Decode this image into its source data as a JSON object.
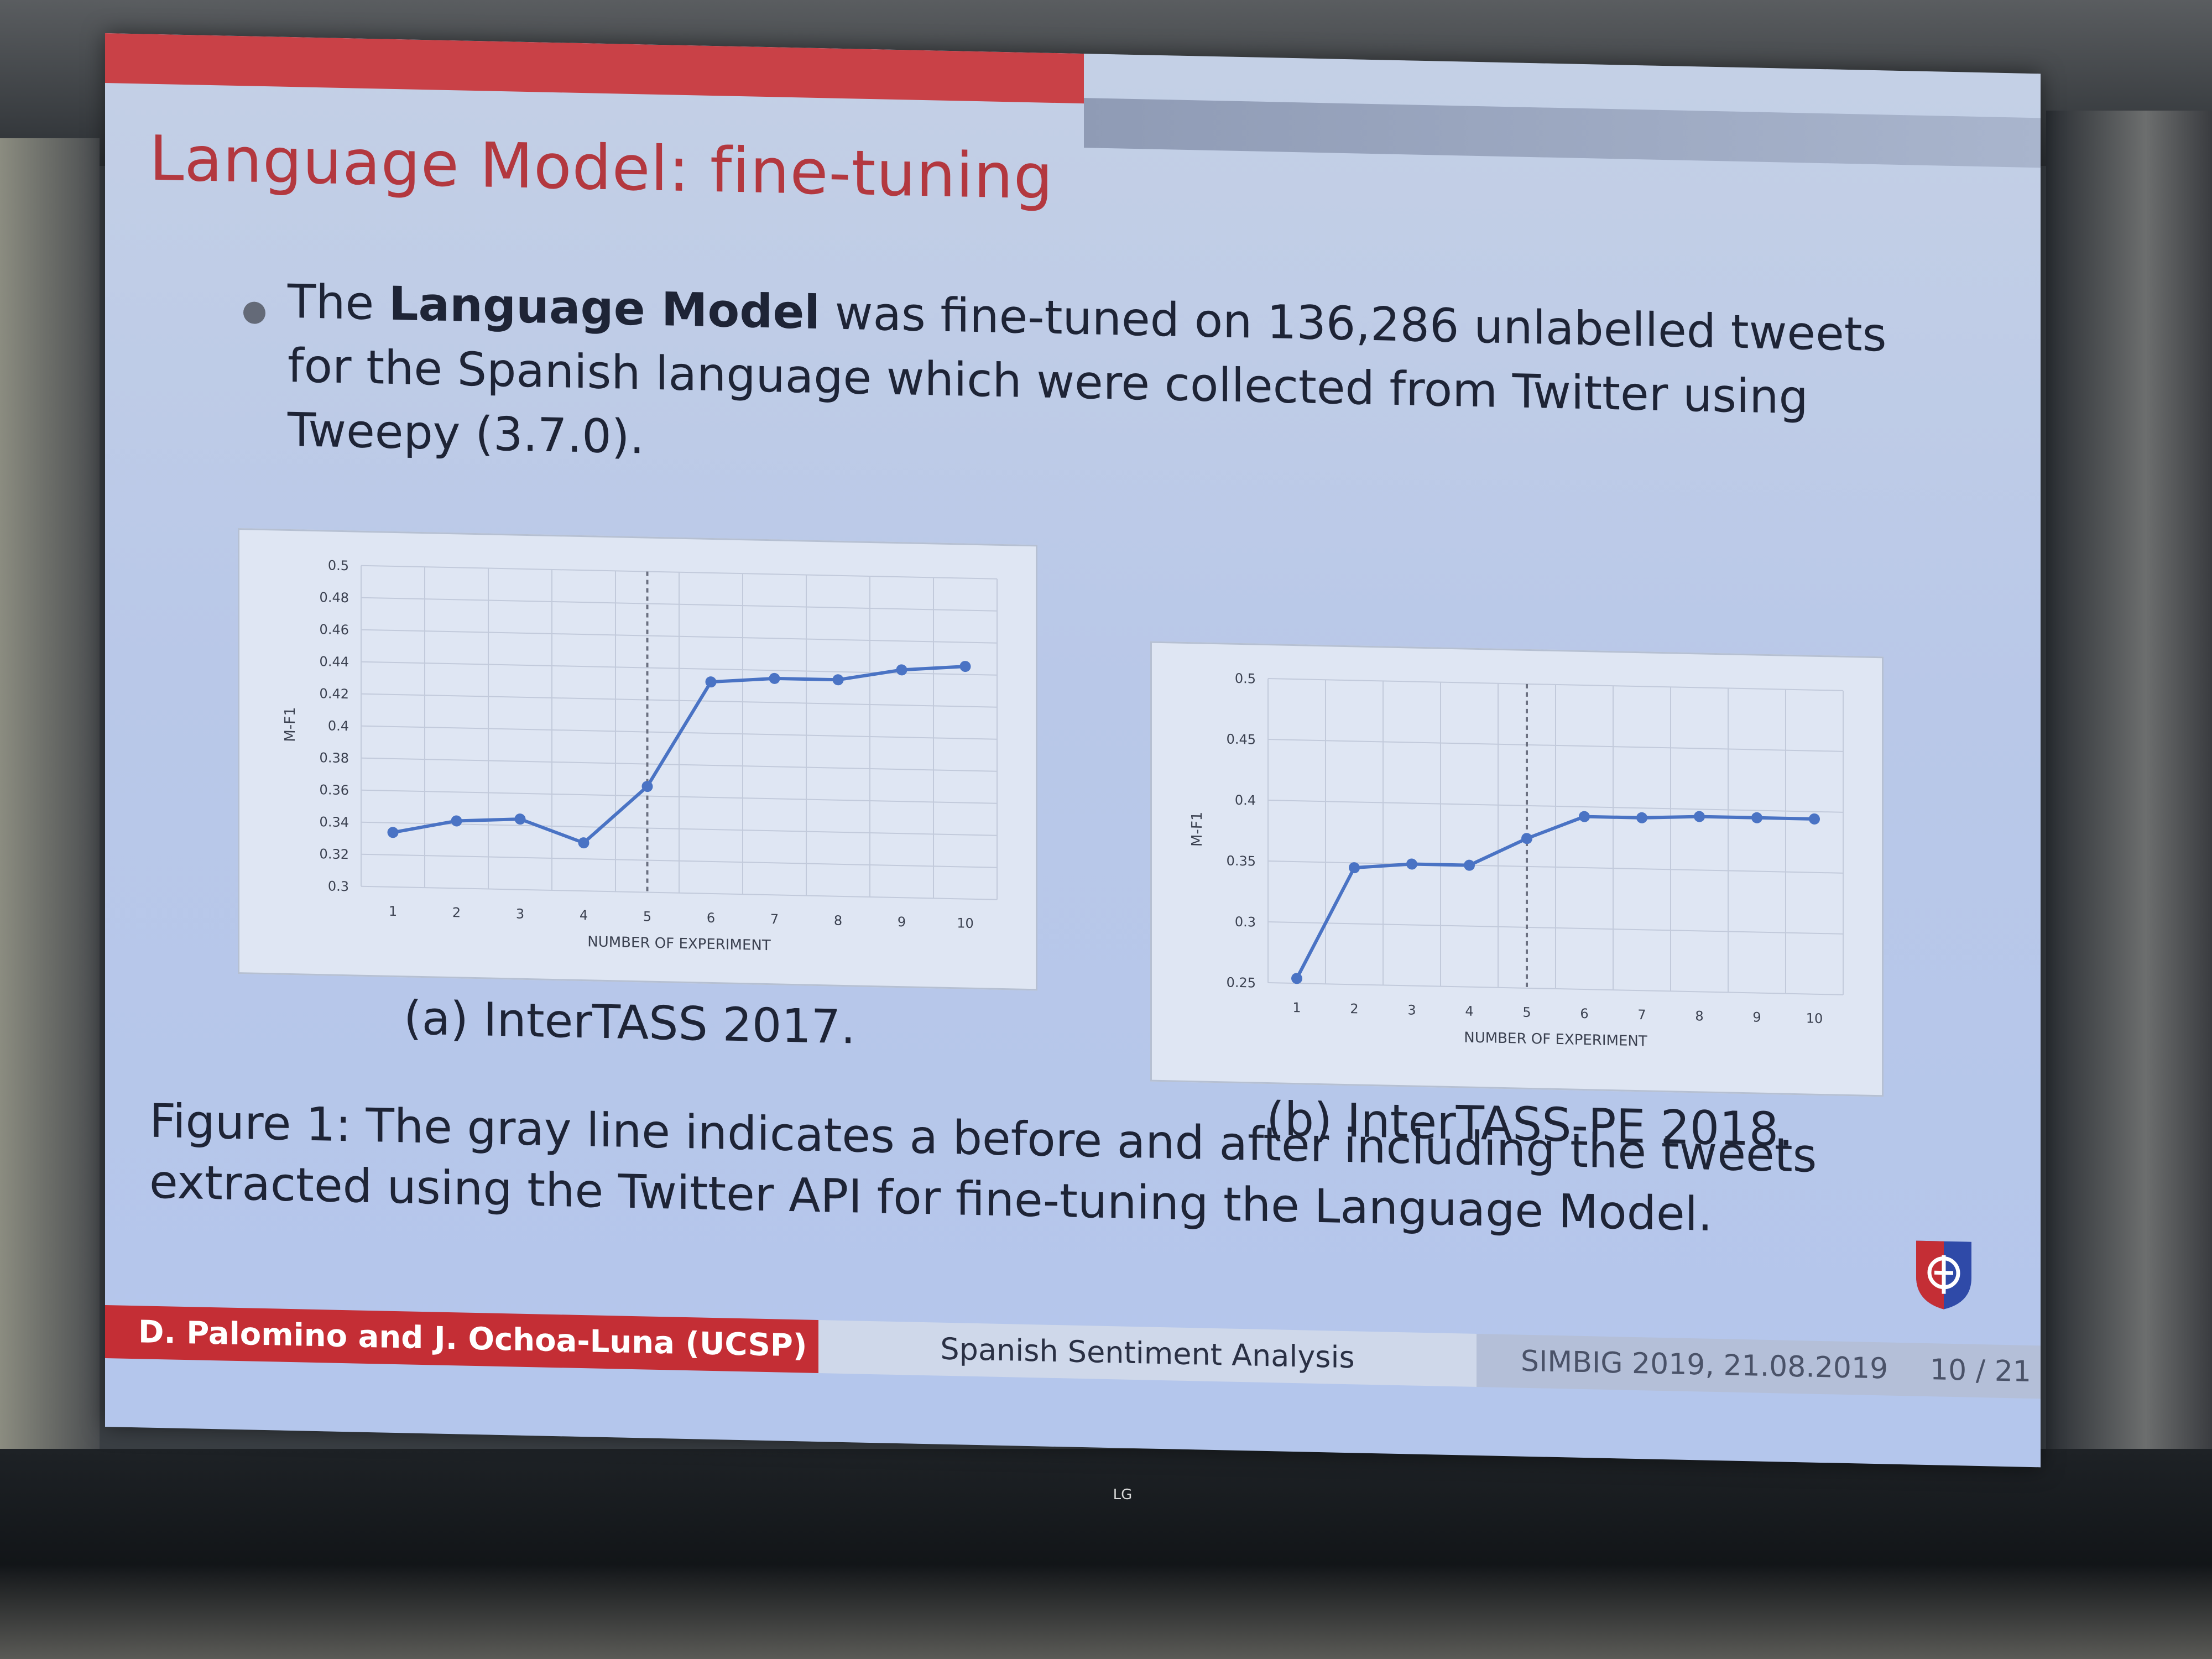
{
  "slide": {
    "title": "Language Model: fine-tuning",
    "bullet": {
      "prefix": "The ",
      "bold": "Language Model",
      "rest": " was fine-tuned on 136,286 unlabelled tweets for the Spanish language which were collected from Twitter using Tweepy (3.7.0)."
    },
    "caption_a": "(a) InterTASS 2017.",
    "caption_b": "(b) InterTASS-PE 2018.",
    "figure_caption": "Figure 1: The gray line indicates a before and after including the tweets extracted using the Twitter API for fine-tuning the Language Model.",
    "footer": {
      "authors": "D. Palomino and J. Ochoa-Luna (UCSP)",
      "talk_title": "Spanish Sentiment Analysis",
      "event_date": "SIMBIG 2019, 21.08.2019",
      "page": "10 / 21"
    },
    "tv_brand": "LG",
    "logo_icon": "university-shield-icon"
  },
  "chart_data": [
    {
      "type": "line",
      "xlabel": "NUMBER OF EXPERIMENT",
      "ylabel": "M-F1",
      "categories": [
        1,
        2,
        3,
        4,
        5,
        6,
        7,
        8,
        9,
        10
      ],
      "ylim": [
        0.3,
        0.5
      ],
      "yticks": [
        0.3,
        0.32,
        0.34,
        0.36,
        0.38,
        0.4,
        0.42,
        0.44,
        0.46,
        0.48,
        0.5
      ],
      "ytick_labels": [
        "0.3",
        "0.32",
        "0.34",
        "0.36",
        "0.38",
        "0.4",
        "0.42",
        "0.44",
        "0.46",
        "0.48",
        "0.5"
      ],
      "series": [
        {
          "values": [
            0.334,
            0.342,
            0.344,
            0.33,
            0.366,
            0.432,
            0.435,
            0.435,
            0.442,
            0.445
          ]
        }
      ],
      "marker_line_at": 5,
      "grid": true,
      "color": "#4a73c4",
      "marker_color": "#6b7080"
    },
    {
      "type": "line",
      "xlabel": "NUMBER OF EXPERIMENT",
      "ylabel": "M-F1",
      "categories": [
        1,
        2,
        3,
        4,
        5,
        6,
        7,
        8,
        9,
        10
      ],
      "ylim": [
        0.25,
        0.5
      ],
      "yticks": [
        0.25,
        0.3,
        0.35,
        0.4,
        0.45,
        0.5
      ],
      "ytick_labels": [
        "0.25",
        "0.3",
        "0.35",
        "0.4",
        "0.45",
        "0.5"
      ],
      "series": [
        {
          "values": [
            0.254,
            0.346,
            0.35,
            0.35,
            0.373,
            0.392,
            0.392,
            0.394,
            0.394,
            0.394
          ]
        }
      ],
      "marker_line_at": 5,
      "grid": true,
      "color": "#4a73c4",
      "marker_color": "#6b7080"
    }
  ]
}
